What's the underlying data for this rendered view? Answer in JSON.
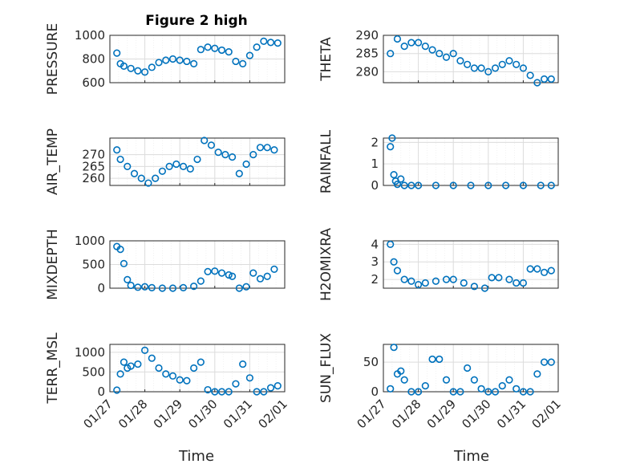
{
  "title": "Figure 2 high",
  "xlabel": "Time",
  "colors": {
    "marker": "#0072BD",
    "axis": "#262626",
    "grid": "#dcdcdc",
    "minor_grid": "#eeeeee"
  },
  "x_ticks": [
    "01/27",
    "01/28",
    "01/29",
    "01/30",
    "01/31",
    "02/01"
  ],
  "chart_data": [
    {
      "type": "scatter",
      "id": "pressure",
      "ylabel": "PRESSURE",
      "ylim": [
        600,
        1000
      ],
      "yticks": [
        "600",
        "800",
        "1000"
      ],
      "grid": true,
      "x": [
        0.2,
        0.3,
        0.4,
        0.6,
        0.8,
        1.0,
        1.2,
        1.4,
        1.6,
        1.8,
        2.0,
        2.2,
        2.4,
        2.6,
        2.8,
        3.0,
        3.2,
        3.4,
        3.6,
        3.8,
        4.0,
        4.2,
        4.4,
        4.6,
        4.8
      ],
      "y": [
        850,
        760,
        740,
        720,
        700,
        690,
        730,
        770,
        790,
        800,
        790,
        780,
        760,
        880,
        900,
        890,
        875,
        860,
        780,
        760,
        830,
        900,
        950,
        940,
        935
      ]
    },
    {
      "type": "scatter",
      "id": "theta",
      "ylabel": "THETA",
      "ylim": [
        277,
        290
      ],
      "yticks": [
        "280",
        "285",
        "290"
      ],
      "grid": true,
      "x": [
        0.2,
        0.4,
        0.6,
        0.8,
        1.0,
        1.2,
        1.4,
        1.6,
        1.8,
        2.0,
        2.2,
        2.4,
        2.6,
        2.8,
        3.0,
        3.2,
        3.4,
        3.6,
        3.8,
        4.0,
        4.2,
        4.4,
        4.6,
        4.8
      ],
      "y": [
        285,
        289,
        287,
        288,
        288,
        287,
        286,
        285,
        284,
        285,
        283,
        282,
        281,
        281,
        280,
        281,
        282,
        283,
        282,
        281,
        279,
        277,
        278,
        278
      ]
    },
    {
      "type": "scatter",
      "id": "air_temp",
      "ylabel": "AIR_TEMP",
      "ylim": [
        257,
        277
      ],
      "yticks": [
        "260",
        "265",
        "270"
      ],
      "grid": true,
      "x": [
        0.2,
        0.3,
        0.5,
        0.7,
        0.9,
        1.1,
        1.3,
        1.5,
        1.7,
        1.9,
        2.1,
        2.3,
        2.5,
        2.7,
        2.9,
        3.1,
        3.3,
        3.5,
        3.7,
        3.9,
        4.1,
        4.3,
        4.5,
        4.7
      ],
      "y": [
        272,
        268,
        265,
        262,
        260,
        258,
        260,
        263,
        265,
        266,
        265,
        264,
        268,
        276,
        274,
        271,
        270,
        269,
        262,
        266,
        270,
        273,
        273,
        272
      ]
    },
    {
      "type": "scatter",
      "id": "rainfall",
      "ylabel": "RAINFALL",
      "ylim": [
        0,
        2.2
      ],
      "yticks": [
        "0",
        "1",
        "2"
      ],
      "grid": true,
      "x": [
        0.2,
        0.25,
        0.3,
        0.35,
        0.4,
        0.5,
        0.6,
        0.8,
        1.0,
        1.5,
        2.0,
        2.5,
        3.0,
        3.5,
        4.0,
        4.5,
        4.8
      ],
      "y": [
        1.8,
        2.2,
        0.5,
        0.2,
        0.05,
        0.3,
        0,
        0,
        0,
        0,
        0,
        0,
        0,
        0,
        0,
        0,
        0
      ]
    },
    {
      "type": "scatter",
      "id": "mixdepth",
      "ylabel": "MIXDEPTH",
      "ylim": [
        0,
        1000
      ],
      "yticks": [
        "0",
        "500",
        "1000"
      ],
      "grid": true,
      "x": [
        0.2,
        0.3,
        0.4,
        0.5,
        0.6,
        0.8,
        1.0,
        1.2,
        1.5,
        1.8,
        2.1,
        2.4,
        2.6,
        2.8,
        3.0,
        3.2,
        3.4,
        3.5,
        3.7,
        3.9,
        4.1,
        4.3,
        4.5,
        4.7
      ],
      "y": [
        880,
        820,
        520,
        180,
        60,
        20,
        30,
        10,
        0,
        0,
        10,
        40,
        150,
        350,
        360,
        320,
        280,
        250,
        0,
        30,
        320,
        200,
        250,
        400
      ]
    },
    {
      "type": "scatter",
      "id": "h2omixra",
      "ylabel": "H2OMIXRA",
      "ylim": [
        1.5,
        4.2
      ],
      "yticks": [
        "2",
        "3",
        "4"
      ],
      "grid": true,
      "x": [
        0.2,
        0.3,
        0.4,
        0.6,
        0.8,
        1.0,
        1.2,
        1.5,
        1.8,
        2.0,
        2.3,
        2.6,
        2.9,
        3.1,
        3.3,
        3.6,
        3.8,
        4.0,
        4.2,
        4.4,
        4.6,
        4.8
      ],
      "y": [
        4.0,
        3.0,
        2.5,
        2.0,
        1.9,
        1.7,
        1.8,
        1.9,
        2.0,
        2.0,
        1.8,
        1.6,
        1.5,
        2.1,
        2.1,
        2.0,
        1.8,
        1.8,
        2.6,
        2.6,
        2.4,
        2.5
      ]
    },
    {
      "type": "scatter",
      "id": "terr_msl",
      "ylabel": "TERR_MSL",
      "ylim": [
        0,
        1200
      ],
      "yticks": [
        "0",
        "500",
        "1000"
      ],
      "grid": true,
      "x": [
        0.2,
        0.3,
        0.4,
        0.5,
        0.6,
        0.8,
        1.0,
        1.2,
        1.4,
        1.6,
        1.8,
        2.0,
        2.2,
        2.4,
        2.6,
        2.8,
        3.0,
        3.2,
        3.4,
        3.6,
        3.8,
        4.0,
        4.2,
        4.4,
        4.6,
        4.8
      ],
      "y": [
        40,
        450,
        750,
        600,
        650,
        700,
        1050,
        850,
        600,
        450,
        400,
        300,
        280,
        600,
        750,
        50,
        0,
        0,
        0,
        200,
        700,
        350,
        0,
        0,
        100,
        150
      ]
    },
    {
      "type": "scatter",
      "id": "sun_flux",
      "ylabel": "SUN_FLUX",
      "ylim": [
        0,
        80
      ],
      "yticks": [
        "0",
        "50"
      ],
      "grid": true,
      "x": [
        0.2,
        0.3,
        0.4,
        0.5,
        0.6,
        0.8,
        1.0,
        1.2,
        1.4,
        1.6,
        1.8,
        2.0,
        2.2,
        2.4,
        2.6,
        2.8,
        3.0,
        3.2,
        3.4,
        3.6,
        3.8,
        4.0,
        4.2,
        4.4,
        4.6,
        4.8
      ],
      "y": [
        5,
        75,
        30,
        35,
        20,
        0,
        0,
        10,
        55,
        55,
        20,
        0,
        0,
        40,
        20,
        5,
        0,
        0,
        10,
        20,
        5,
        0,
        0,
        30,
        50,
        50
      ]
    }
  ]
}
